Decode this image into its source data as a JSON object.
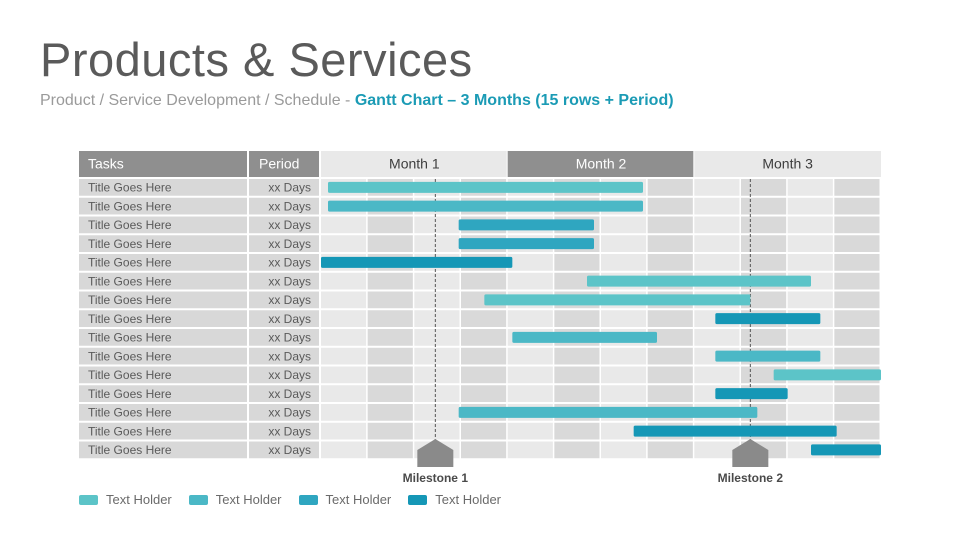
{
  "page": {
    "title": "Products & Services",
    "subtitle_prefix": "Product / Service Development / Schedule - ",
    "subtitle_accent": "Gantt Chart – 3 Months (15 rows + Period)"
  },
  "colors": {
    "header_dark": "#8f8f8f",
    "header_light": "#e9e9e9",
    "row_label_bg": "#d8d8d8",
    "cell_light": "#e9e9e9",
    "cell_dark": "#d9d9d9",
    "text_gray": "#5a5a5a",
    "milestone": "#8a8a8a"
  },
  "chart_data": {
    "type": "gantt",
    "headers": {
      "tasks": "Tasks",
      "period": "Period"
    },
    "months": [
      "Month 1",
      "Month 2",
      "Month 3"
    ],
    "weeks_per_month": 4,
    "rows": [
      {
        "task": "Title Goes Here",
        "period": "xx Days",
        "start": 0.15,
        "end": 6.9,
        "color": "#5cc4c8"
      },
      {
        "task": "Title Goes Here",
        "period": "xx Days",
        "start": 0.15,
        "end": 6.9,
        "color": "#4bb8c6"
      },
      {
        "task": "Title Goes Here",
        "period": "xx Days",
        "start": 2.95,
        "end": 5.85,
        "color": "#2fa6c0"
      },
      {
        "task": "Title Goes Here",
        "period": "xx Days",
        "start": 2.95,
        "end": 5.85,
        "color": "#2fa6c0"
      },
      {
        "task": "Title Goes Here",
        "period": "xx Days",
        "start": 0.0,
        "end": 4.1,
        "color": "#1597b6"
      },
      {
        "task": "Title Goes Here",
        "period": "xx Days",
        "start": 5.7,
        "end": 10.5,
        "color": "#5cc4c8"
      },
      {
        "task": "Title Goes Here",
        "period": "xx Days",
        "start": 3.5,
        "end": 9.2,
        "color": "#5cc4c8"
      },
      {
        "task": "Title Goes Here",
        "period": "xx Days",
        "start": 8.45,
        "end": 10.7,
        "color": "#1597b6"
      },
      {
        "task": "Title Goes Here",
        "period": "xx Days",
        "start": 4.1,
        "end": 7.2,
        "color": "#4bb8c6"
      },
      {
        "task": "Title Goes Here",
        "period": "xx Days",
        "start": 8.45,
        "end": 10.7,
        "color": "#4bb8c6"
      },
      {
        "task": "Title Goes Here",
        "period": "xx Days",
        "start": 9.7,
        "end": 12.0,
        "color": "#5cc4c8"
      },
      {
        "task": "Title Goes Here",
        "period": "xx Days",
        "start": 8.45,
        "end": 10.0,
        "color": "#1597b6"
      },
      {
        "task": "Title Goes Here",
        "period": "xx Days",
        "start": 2.95,
        "end": 9.35,
        "color": "#4bb8c6"
      },
      {
        "task": "Title Goes Here",
        "period": "xx Days",
        "start": 6.7,
        "end": 11.05,
        "color": "#1597b6"
      },
      {
        "task": "Title Goes Here",
        "period": "xx Days",
        "start": 10.5,
        "end": 12.0,
        "color": "#1597b6"
      }
    ],
    "milestones": [
      {
        "label": "Milestone 1",
        "at": 2.45
      },
      {
        "label": "Milestone 2",
        "at": 9.2
      }
    ],
    "legend": [
      {
        "label": "Text Holder",
        "color": "#5cc4c8"
      },
      {
        "label": "Text Holder",
        "color": "#4bb8c6"
      },
      {
        "label": "Text Holder",
        "color": "#2fa6c0"
      },
      {
        "label": "Text Holder",
        "color": "#1597b6"
      }
    ]
  }
}
